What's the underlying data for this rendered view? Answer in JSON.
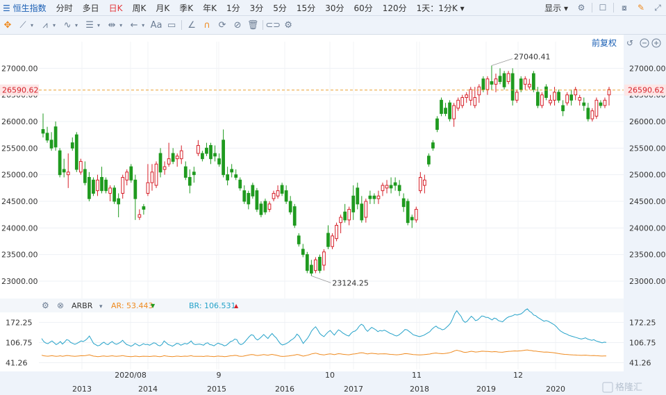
{
  "toolbar": {
    "index_name": "恒生指数",
    "periods": [
      "分时",
      "多日",
      "日K",
      "周K",
      "月K",
      "季K",
      "年K",
      "1分",
      "3分",
      "5分",
      "15分",
      "30分",
      "60分",
      "120分"
    ],
    "active_period": "日K",
    "combo": "1天：1分K",
    "display": "显示"
  },
  "toolbar2": {
    "icons": [
      "crosshair-icon",
      "line-tool-icon",
      "channel-tool-icon",
      "wave-tool-icon",
      "fib-tool-icon",
      "range-tool-icon",
      "arrow-tool-icon",
      "text-tool-icon",
      "comment-tool-icon",
      "angle-tool-icon",
      "magnet-icon",
      "sync-icon",
      "hide-icon",
      "trash-icon",
      "link-icon",
      "settings-icon"
    ],
    "text_tool": "Aa"
  },
  "main": {
    "adjust_label": "前复权",
    "current_price": "26590.62",
    "high_label": "27040.41",
    "low_label": "23124.25",
    "y_ticks": [
      "27000.00",
      "26500.00",
      "26000.00",
      "25500.00",
      "25000.00",
      "24500.00",
      "24000.00",
      "23500.00",
      "23000.00"
    ]
  },
  "indicator": {
    "name": "ARBR",
    "ar_label": "AR: 53.443",
    "br_label": "BR: 106.531",
    "y_ticks": [
      "172.25",
      "106.75",
      "41.26"
    ]
  },
  "x_axis": {
    "labels": [
      "2013",
      "2020/08",
      "2014",
      "9",
      "2015",
      "2016",
      "10",
      "2017",
      "2018",
      "11",
      "2019",
      "12",
      "2020"
    ]
  },
  "watermark": "格隆汇",
  "colors": {
    "up": "#d61f28",
    "down": "#1f9a1f",
    "ar": "#ef8a1f",
    "br": "#25a2c9",
    "price_line": "#e9a030"
  },
  "chart_data": {
    "type": "candlestick",
    "y_range": [
      22700,
      27500
    ],
    "candles": [
      {
        "o": 25850,
        "h": 26150,
        "l": 25700,
        "c": 25780
      },
      {
        "o": 25780,
        "h": 25900,
        "l": 25600,
        "c": 25650
      },
      {
        "o": 25650,
        "h": 25800,
        "l": 25450,
        "c": 25500
      },
      {
        "o": 25900,
        "h": 26000,
        "l": 25450,
        "c": 25520
      },
      {
        "o": 25450,
        "h": 25500,
        "l": 24950,
        "c": 25000
      },
      {
        "o": 25100,
        "h": 25300,
        "l": 24950,
        "c": 25050
      },
      {
        "o": 25000,
        "h": 25400,
        "l": 24750,
        "c": 25050
      },
      {
        "o": 25600,
        "h": 25700,
        "l": 25450,
        "c": 25500
      },
      {
        "o": 25750,
        "h": 25800,
        "l": 25050,
        "c": 25100
      },
      {
        "o": 25050,
        "h": 25300,
        "l": 25000,
        "c": 25250
      },
      {
        "o": 25100,
        "h": 25250,
        "l": 24800,
        "c": 24850
      },
      {
        "o": 24950,
        "h": 25050,
        "l": 24500,
        "c": 24550
      },
      {
        "o": 24900,
        "h": 24950,
        "l": 24600,
        "c": 24650
      },
      {
        "o": 24700,
        "h": 25000,
        "l": 24600,
        "c": 24900
      },
      {
        "o": 24950,
        "h": 25150,
        "l": 24650,
        "c": 24700
      },
      {
        "o": 24900,
        "h": 24950,
        "l": 24650,
        "c": 24700
      },
      {
        "o": 24650,
        "h": 24800,
        "l": 24500,
        "c": 24750
      },
      {
        "o": 24750,
        "h": 24800,
        "l": 24450,
        "c": 24500
      },
      {
        "o": 24550,
        "h": 24650,
        "l": 24200,
        "c": 24450
      },
      {
        "o": 24650,
        "h": 25000,
        "l": 24550,
        "c": 24950
      },
      {
        "o": 24900,
        "h": 25100,
        "l": 24800,
        "c": 25050
      },
      {
        "o": 25150,
        "h": 25200,
        "l": 24850,
        "c": 24900
      },
      {
        "o": 24900,
        "h": 25000,
        "l": 24150,
        "c": 24550
      },
      {
        "o": 24200,
        "h": 24350,
        "l": 24150,
        "c": 24250
      },
      {
        "o": 24400,
        "h": 24450,
        "l": 24250,
        "c": 24350
      },
      {
        "o": 24650,
        "h": 25200,
        "l": 24600,
        "c": 24850
      },
      {
        "o": 24850,
        "h": 25200,
        "l": 24700,
        "c": 25050
      },
      {
        "o": 24800,
        "h": 25250,
        "l": 24750,
        "c": 25200
      },
      {
        "o": 25400,
        "h": 25500,
        "l": 24950,
        "c": 25050
      },
      {
        "o": 25100,
        "h": 25250,
        "l": 25000,
        "c": 25150
      },
      {
        "o": 25200,
        "h": 25600,
        "l": 25150,
        "c": 25300
      },
      {
        "o": 25400,
        "h": 25500,
        "l": 25200,
        "c": 25250
      },
      {
        "o": 25300,
        "h": 25400,
        "l": 25150,
        "c": 25350
      },
      {
        "o": 25300,
        "h": 25550,
        "l": 25200,
        "c": 25450
      },
      {
        "o": 25150,
        "h": 25250,
        "l": 24900,
        "c": 24950
      },
      {
        "o": 24950,
        "h": 25100,
        "l": 24650,
        "c": 24800
      },
      {
        "o": 25050,
        "h": 25150,
        "l": 24850,
        "c": 25000
      },
      {
        "o": 25400,
        "h": 25650,
        "l": 25350,
        "c": 25550
      },
      {
        "o": 25400,
        "h": 25450,
        "l": 25250,
        "c": 25300
      },
      {
        "o": 25500,
        "h": 25600,
        "l": 25350,
        "c": 25400
      },
      {
        "o": 25550,
        "h": 25600,
        "l": 25200,
        "c": 25300
      },
      {
        "o": 25400,
        "h": 25550,
        "l": 25250,
        "c": 25350
      },
      {
        "o": 25300,
        "h": 25400,
        "l": 25150,
        "c": 25200
      },
      {
        "o": 25650,
        "h": 25850,
        "l": 24950,
        "c": 25000
      },
      {
        "o": 25000,
        "h": 25150,
        "l": 24800,
        "c": 24900
      },
      {
        "o": 25100,
        "h": 25200,
        "l": 24950,
        "c": 25050
      },
      {
        "o": 25000,
        "h": 25100,
        "l": 24900,
        "c": 24950
      },
      {
        "o": 24900,
        "h": 24950,
        "l": 24700,
        "c": 24750
      },
      {
        "o": 24700,
        "h": 24800,
        "l": 24450,
        "c": 24500
      },
      {
        "o": 24650,
        "h": 24700,
        "l": 24350,
        "c": 24450
      },
      {
        "o": 24800,
        "h": 24850,
        "l": 24550,
        "c": 24600
      },
      {
        "o": 24700,
        "h": 24750,
        "l": 24300,
        "c": 24350
      },
      {
        "o": 24450,
        "h": 24500,
        "l": 24200,
        "c": 24250
      },
      {
        "o": 24500,
        "h": 24550,
        "l": 24250,
        "c": 24300
      },
      {
        "o": 24350,
        "h": 24500,
        "l": 24300,
        "c": 24450
      },
      {
        "o": 24550,
        "h": 24700,
        "l": 24500,
        "c": 24650
      },
      {
        "o": 24600,
        "h": 24800,
        "l": 24550,
        "c": 24700
      },
      {
        "o": 24800,
        "h": 24850,
        "l": 24600,
        "c": 24650
      },
      {
        "o": 24700,
        "h": 24800,
        "l": 24450,
        "c": 24500
      },
      {
        "o": 24500,
        "h": 24600,
        "l": 24250,
        "c": 24300
      },
      {
        "o": 24400,
        "h": 24450,
        "l": 24000,
        "c": 24050
      },
      {
        "o": 23850,
        "h": 23900,
        "l": 23650,
        "c": 23700
      },
      {
        "o": 23600,
        "h": 23700,
        "l": 23450,
        "c": 23500
      },
      {
        "o": 23500,
        "h": 23550,
        "l": 23150,
        "c": 23200
      },
      {
        "o": 23300,
        "h": 23400,
        "l": 23100,
        "c": 23150
      },
      {
        "o": 23200,
        "h": 23450,
        "l": 23150,
        "c": 23400
      },
      {
        "o": 23450,
        "h": 23500,
        "l": 23150,
        "c": 23200
      },
      {
        "o": 23300,
        "h": 23600,
        "l": 23200,
        "c": 23550
      },
      {
        "o": 23900,
        "h": 24050,
        "l": 23600,
        "c": 23650
      },
      {
        "o": 23650,
        "h": 23900,
        "l": 23600,
        "c": 23850
      },
      {
        "o": 23800,
        "h": 24100,
        "l": 23750,
        "c": 24050
      },
      {
        "o": 24100,
        "h": 24250,
        "l": 23900,
        "c": 24200
      },
      {
        "o": 24300,
        "h": 24450,
        "l": 24100,
        "c": 24150
      },
      {
        "o": 24150,
        "h": 24400,
        "l": 24050,
        "c": 24350
      },
      {
        "o": 24600,
        "h": 24800,
        "l": 24150,
        "c": 24300
      },
      {
        "o": 24750,
        "h": 24850,
        "l": 24350,
        "c": 24450
      },
      {
        "o": 24450,
        "h": 24600,
        "l": 24100,
        "c": 24150
      },
      {
        "o": 24200,
        "h": 24550,
        "l": 24100,
        "c": 24500
      },
      {
        "o": 24600,
        "h": 24700,
        "l": 24450,
        "c": 24550
      },
      {
        "o": 24600,
        "h": 24650,
        "l": 24450,
        "c": 24550
      },
      {
        "o": 24550,
        "h": 24700,
        "l": 24450,
        "c": 24600
      },
      {
        "o": 24700,
        "h": 24850,
        "l": 24600,
        "c": 24800
      },
      {
        "o": 24750,
        "h": 24900,
        "l": 24650,
        "c": 24800
      },
      {
        "o": 24800,
        "h": 24950,
        "l": 24650,
        "c": 24750
      },
      {
        "o": 24850,
        "h": 24950,
        "l": 24700,
        "c": 24800
      },
      {
        "o": 24800,
        "h": 24900,
        "l": 24600,
        "c": 24700
      },
      {
        "o": 24550,
        "h": 24650,
        "l": 24300,
        "c": 24400
      },
      {
        "o": 24500,
        "h": 24550,
        "l": 24050,
        "c": 24100
      },
      {
        "o": 24200,
        "h": 24250,
        "l": 24000,
        "c": 24150
      },
      {
        "o": 24150,
        "h": 24400,
        "l": 24100,
        "c": 24350
      },
      {
        "o": 24700,
        "h": 25050,
        "l": 24650,
        "c": 24950
      },
      {
        "o": 24800,
        "h": 25000,
        "l": 24650,
        "c": 24900
      },
      {
        "o": 25350,
        "h": 25400,
        "l": 25150,
        "c": 25200
      },
      {
        "o": 25600,
        "h": 25650,
        "l": 25450,
        "c": 25500
      },
      {
        "o": 26050,
        "h": 26100,
        "l": 25800,
        "c": 25850
      },
      {
        "o": 26400,
        "h": 26450,
        "l": 26100,
        "c": 26150
      },
      {
        "o": 26250,
        "h": 26350,
        "l": 26100,
        "c": 26150
      },
      {
        "o": 26350,
        "h": 26400,
        "l": 26000,
        "c": 26050
      },
      {
        "o": 26050,
        "h": 26350,
        "l": 25900,
        "c": 26300
      },
      {
        "o": 26250,
        "h": 26450,
        "l": 26200,
        "c": 26400
      },
      {
        "o": 26300,
        "h": 26500,
        "l": 26250,
        "c": 26450
      },
      {
        "o": 26450,
        "h": 26550,
        "l": 26350,
        "c": 26500
      },
      {
        "o": 26400,
        "h": 26650,
        "l": 26300,
        "c": 26600
      },
      {
        "o": 26300,
        "h": 26650,
        "l": 26250,
        "c": 26450
      },
      {
        "o": 26500,
        "h": 26700,
        "l": 26350,
        "c": 26650
      },
      {
        "o": 26800,
        "h": 26850,
        "l": 26550,
        "c": 26600
      },
      {
        "o": 26600,
        "h": 26850,
        "l": 26500,
        "c": 26800
      },
      {
        "o": 26750,
        "h": 27050,
        "l": 26600,
        "c": 26700
      },
      {
        "o": 26700,
        "h": 26900,
        "l": 26550,
        "c": 26800
      },
      {
        "o": 26850,
        "h": 27000,
        "l": 26700,
        "c": 26750
      },
      {
        "o": 26900,
        "h": 26950,
        "l": 26600,
        "c": 26650
      },
      {
        "o": 26750,
        "h": 26950,
        "l": 26700,
        "c": 26900
      },
      {
        "o": 26900,
        "h": 27000,
        "l": 26300,
        "c": 26400
      },
      {
        "o": 26400,
        "h": 26600,
        "l": 26350,
        "c": 26550
      },
      {
        "o": 26800,
        "h": 26850,
        "l": 26550,
        "c": 26600
      },
      {
        "o": 26700,
        "h": 26850,
        "l": 26600,
        "c": 26800
      },
      {
        "o": 26650,
        "h": 26800,
        "l": 26600,
        "c": 26700
      },
      {
        "o": 26900,
        "h": 26950,
        "l": 26550,
        "c": 26600
      },
      {
        "o": 26550,
        "h": 26650,
        "l": 26250,
        "c": 26300
      },
      {
        "o": 26300,
        "h": 26550,
        "l": 26250,
        "c": 26500
      },
      {
        "o": 26650,
        "h": 26700,
        "l": 26400,
        "c": 26450
      },
      {
        "o": 26350,
        "h": 26500,
        "l": 26300,
        "c": 26400
      },
      {
        "o": 26400,
        "h": 26650,
        "l": 26300,
        "c": 26550
      },
      {
        "o": 26550,
        "h": 26600,
        "l": 26350,
        "c": 26400
      },
      {
        "o": 26300,
        "h": 26400,
        "l": 26100,
        "c": 26200
      },
      {
        "o": 26350,
        "h": 26550,
        "l": 26300,
        "c": 26500
      },
      {
        "o": 26500,
        "h": 26600,
        "l": 26300,
        "c": 26400
      },
      {
        "o": 26500,
        "h": 26650,
        "l": 26400,
        "c": 26600
      },
      {
        "o": 26400,
        "h": 26500,
        "l": 26300,
        "c": 26450
      },
      {
        "o": 26350,
        "h": 26450,
        "l": 26200,
        "c": 26300
      },
      {
        "o": 26250,
        "h": 26350,
        "l": 26000,
        "c": 26050
      },
      {
        "o": 26050,
        "h": 26250,
        "l": 26000,
        "c": 26200
      },
      {
        "o": 26100,
        "h": 26450,
        "l": 26050,
        "c": 26400
      },
      {
        "o": 26350,
        "h": 26400,
        "l": 26250,
        "c": 26300
      },
      {
        "o": 26300,
        "h": 26450,
        "l": 26250,
        "c": 26400
      },
      {
        "o": 26500,
        "h": 26650,
        "l": 26300,
        "c": 26600
      }
    ],
    "indicator": {
      "name": "ARBR",
      "y_ticks": [
        172.25,
        106.75,
        41.26
      ],
      "br": [
        120,
        110,
        105,
        103,
        108,
        112,
        106,
        100,
        104,
        110,
        102,
        108,
        116,
        114,
        107,
        104,
        101,
        104,
        108,
        112,
        110,
        114,
        120,
        128,
        116,
        104,
        100,
        96,
        98,
        104,
        108,
        102,
        100,
        106,
        110,
        104,
        101,
        104,
        108,
        114,
        106,
        100,
        98,
        95,
        98,
        104,
        100,
        96,
        99,
        103,
        100,
        101,
        98,
        102,
        106,
        104,
        98,
        96,
        101,
        112,
        106,
        100,
        98,
        95,
        99,
        104,
        103,
        98,
        101,
        104,
        102,
        106,
        112,
        103,
        100,
        101,
        102,
        100,
        98,
        104,
        106,
        100,
        99,
        96,
        101,
        105,
        102,
        100,
        96,
        98,
        104,
        110,
        112,
        118,
        116,
        104,
        100,
        103,
        110,
        118,
        126,
        132,
        130,
        120,
        115,
        120,
        126,
        133,
        126,
        120,
        129,
        136,
        128,
        122,
        112,
        103,
        99,
        101,
        104,
        108,
        114,
        118,
        124,
        134,
        128,
        116,
        104,
        112,
        120,
        131,
        144,
        152,
        158,
        148,
        136,
        130,
        126,
        134,
        141,
        146,
        138,
        131,
        140,
        148,
        144,
        138,
        134,
        130,
        128,
        136,
        142,
        144,
        150,
        160,
        166,
        162,
        150,
        143,
        150,
        156,
        152,
        148,
        142,
        146,
        144,
        147,
        144,
        140,
        136,
        134,
        130,
        128,
        131,
        136,
        142,
        149,
        148,
        143,
        138,
        132,
        130,
        128,
        126,
        128,
        130,
        134,
        138,
        142,
        150,
        156,
        160,
        154,
        152,
        148,
        150,
        156,
        162,
        170,
        184,
        200,
        210,
        200,
        192,
        178,
        172,
        176,
        184,
        192,
        186,
        178,
        180,
        186,
        193,
        192,
        188,
        188,
        184,
        180,
        186,
        184,
        178,
        176,
        174,
        180,
        186,
        190,
        192,
        194,
        198,
        196,
        198,
        200,
        205,
        212,
        216,
        208,
        204,
        196,
        194,
        188,
        184,
        180,
        176,
        178,
        176,
        172,
        168,
        164,
        158,
        150,
        144,
        140,
        136,
        134,
        130,
        128,
        126,
        124,
        122,
        120,
        118,
        120,
        122,
        118,
        116,
        114,
        116,
        112,
        110,
        108,
        106,
        108,
        107
      ]
    }
  }
}
